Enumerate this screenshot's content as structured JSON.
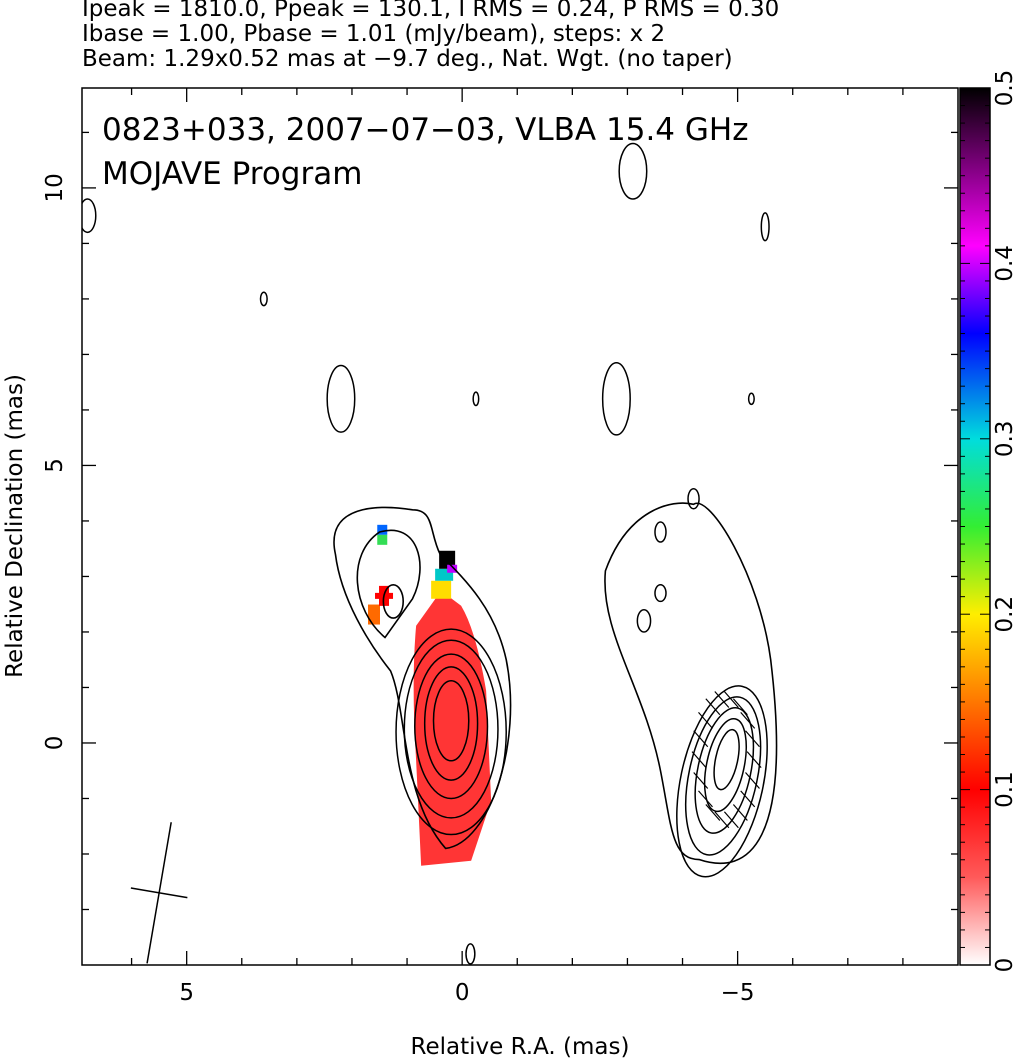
{
  "header": {
    "line1": "Ipeak = 1810.0, Ppeak = 130.1, I RMS = 0.24, P RMS = 0.30",
    "line2": "Ibase = 1.00, Pbase = 1.01 (mJy/beam), steps: x 2",
    "line3": "Beam: 1.29x0.52 mas at −9.7 deg., Nat. Wgt. (no taper)"
  },
  "chart_data": {
    "type": "heatmap",
    "title": "0823+033, 2007−07−03, VLBA 15.4 GHz",
    "subtitle": "MOJAVE Program",
    "xlabel": "Relative R.A. (mas)",
    "ylabel": "Relative Declination (mas)",
    "xlim": [
      6.9,
      -9.0
    ],
    "ylim": [
      -4.0,
      11.8
    ],
    "x_ticks": [
      "5",
      "0",
      "−5"
    ],
    "x_tick_values": [
      5,
      0,
      -5
    ],
    "y_ticks": [
      "0",
      "5",
      "10"
    ],
    "y_tick_values": [
      0,
      5,
      10
    ],
    "colorbar": {
      "range": [
        0,
        0.5
      ],
      "ticks": [
        "0",
        "0.1",
        "0.2",
        "0.3",
        "0.4",
        "0.5"
      ],
      "tick_values": [
        0,
        0.1,
        0.2,
        0.3,
        0.4,
        0.5
      ],
      "colors": [
        "#ffffff",
        "#ff3a3a",
        "#ff0000",
        "#ff7700",
        "#ffee00",
        "#33ee33",
        "#00dddd",
        "#0000ff",
        "#ff00ff",
        "#000000"
      ]
    },
    "core_contours": {
      "center": [
        0.2,
        0.4
      ],
      "rx": [
        0.32,
        0.48,
        0.66,
        0.85,
        1.0
      ],
      "ry": [
        0.72,
        1.02,
        1.3,
        1.6,
        1.85
      ]
    },
    "right_contours": {
      "center": [
        -4.8,
        -0.3
      ],
      "rx": [
        0.2,
        0.34,
        0.48,
        0.62,
        0.75
      ],
      "ry": [
        0.55,
        0.85,
        1.15,
        1.45,
        1.75
      ]
    },
    "small_contours": [
      {
        "x": 2.2,
        "y": 6.2,
        "rx": 0.25,
        "ry": 0.6
      },
      {
        "x": -2.8,
        "y": 6.2,
        "rx": 0.25,
        "ry": 0.65
      },
      {
        "x": -3.1,
        "y": 10.3,
        "rx": 0.25,
        "ry": 0.5
      },
      {
        "x": 3.6,
        "y": 8.0,
        "rx": 0.06,
        "ry": 0.12
      },
      {
        "x": -0.25,
        "y": 6.2,
        "rx": 0.05,
        "ry": 0.12
      },
      {
        "x": -5.25,
        "y": 6.2,
        "rx": 0.05,
        "ry": 0.1
      },
      {
        "x": -5.5,
        "y": 9.3,
        "rx": 0.07,
        "ry": 0.25
      },
      {
        "x": 6.8,
        "y": 9.5,
        "rx": 0.15,
        "ry": 0.3
      },
      {
        "x": -4.2,
        "y": 4.4,
        "rx": 0.1,
        "ry": 0.18
      },
      {
        "x": -3.6,
        "y": 3.8,
        "rx": 0.1,
        "ry": 0.18
      },
      {
        "x": -3.6,
        "y": 2.7,
        "rx": 0.1,
        "ry": 0.15
      },
      {
        "x": -3.3,
        "y": 2.2,
        "rx": 0.12,
        "ry": 0.2
      },
      {
        "x": -0.15,
        "y": -3.8,
        "rx": 0.08,
        "ry": 0.18
      }
    ],
    "beam": {
      "x": 5.5,
      "y": -2.7,
      "major": 1.29,
      "minor": 0.52,
      "pa": -9.7
    }
  }
}
